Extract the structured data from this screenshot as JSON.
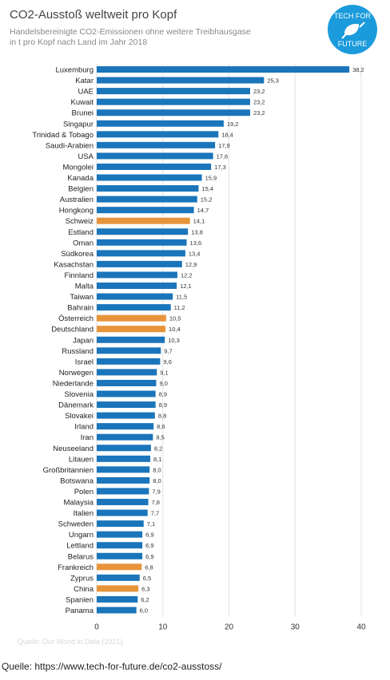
{
  "title": "CO2-Ausstoß weltweit pro Kopf",
  "subtitle_line1": "Handelsbereinigte CO2-Emissionen ohne weitere Treibhausgase",
  "subtitle_line2": "in t pro Kopf nach Land im Jahr 2018",
  "logo": {
    "line1": "TECH FOR",
    "line2": "FUTURE",
    "icon": "plug-leaf-icon",
    "color": "#1b9bdc"
  },
  "source_note": "Quelle: Our World in Data (2021).",
  "footer": "Quelle: https://www.tech-for-future.de/co2-ausstoss/",
  "colors": {
    "default": "#1a75bb",
    "highlight": "#e8943a"
  },
  "chart_data": {
    "type": "bar",
    "orientation": "horizontal",
    "xlim": [
      0,
      40
    ],
    "xticks": [
      0,
      10,
      20,
      30,
      40
    ],
    "grid": true,
    "title": "CO2-Ausstoß weltweit pro Kopf",
    "categories": [
      "Luxemburg",
      "Katar",
      "UAE",
      "Kuwait",
      "Brunei",
      "Singapur",
      "Trinidad & Tobago",
      "Saudi-Arabien",
      "USA",
      "Mongolei",
      "Kanada",
      "Belgien",
      "Australien",
      "Hongkong",
      "Schweiz",
      "Estland",
      "Oman",
      "Südkorea",
      "Kasachstan",
      "Finnland",
      "Malta",
      "Taiwan",
      "Bahrain",
      "Österreich",
      "Deutschland",
      "Japan",
      "Russland",
      "Israel",
      "Norwegen",
      "Niederlande",
      "Slovenia",
      "Dänemark",
      "Slovakei",
      "Irland",
      "Iran",
      "Neuseeland",
      "Litauen",
      "Großbritannien",
      "Botswana",
      "Polen",
      "Malaysia",
      "Italien",
      "Schweden",
      "Ungarn",
      "Lettland",
      "Belarus",
      "Frankreich",
      "Zyprus",
      "China",
      "Spanien",
      "Panama"
    ],
    "values": [
      38.2,
      25.3,
      23.2,
      23.2,
      23.2,
      19.2,
      18.4,
      17.9,
      17.6,
      17.3,
      15.9,
      15.4,
      15.2,
      14.7,
      14.1,
      13.8,
      13.6,
      13.4,
      12.9,
      12.2,
      12.1,
      11.5,
      11.2,
      10.5,
      10.4,
      10.3,
      9.7,
      9.6,
      9.1,
      9.0,
      8.9,
      8.9,
      8.8,
      8.6,
      8.5,
      8.2,
      8.1,
      8.0,
      8.0,
      7.9,
      7.8,
      7.7,
      7.1,
      6.9,
      6.9,
      6.9,
      6.8,
      6.5,
      6.3,
      6.2,
      6.0
    ],
    "value_labels": [
      "38,2",
      "25,3",
      "23,2",
      "23,2",
      "23,2",
      "19,2",
      "18,4",
      "17,9",
      "17,6",
      "17,3",
      "15,9",
      "15,4",
      "15,2",
      "14,7",
      "14,1",
      "13,8",
      "13,6",
      "13,4",
      "12,9",
      "12,2",
      "12,1",
      "11,5",
      "11,2",
      "10,5",
      "10,4",
      "10,3",
      "9,7",
      "9,6",
      "9,1",
      "9,0",
      "8,9",
      "8,9",
      "8,8",
      "8,6",
      "8,5",
      "8,2",
      "8,1",
      "8,0",
      "8,0",
      "7,9",
      "7,8",
      "7,7",
      "7,1",
      "6,9",
      "6,9",
      "6,9",
      "6,8",
      "6,5",
      "6,3",
      "6,2",
      "6,0"
    ],
    "highlighted": [
      "Schweiz",
      "Österreich",
      "Deutschland",
      "Frankreich",
      "China"
    ]
  }
}
